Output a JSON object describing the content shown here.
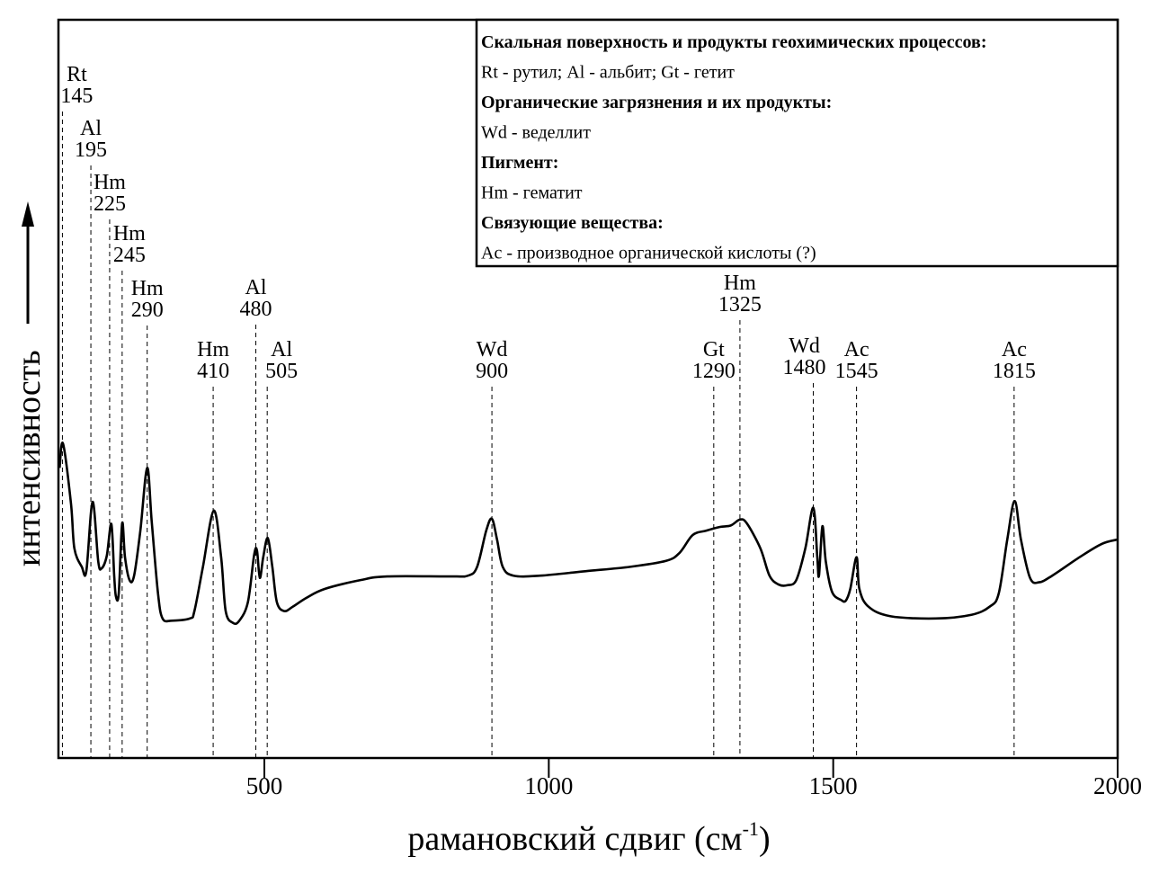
{
  "chart_data": {
    "type": "line",
    "title": "",
    "xlabel": "рамановский сдвиг (см",
    "xlabel_sup": "-1",
    "xlabel_close": ")",
    "ylabel": "интенсивность",
    "xlim": [
      138,
      2000
    ],
    "ylim": [
      0,
      100
    ],
    "grid": false,
    "x_ticks": [
      500,
      1000,
      1500,
      2000
    ],
    "x_tick_labels": [
      "500",
      "1000",
      "1500",
      "2000"
    ],
    "series": [
      {
        "name": "spectrum",
        "color": "#000000",
        "points": [
          [
            140,
            39.3
          ],
          [
            146,
            42.6
          ],
          [
            160,
            34.5
          ],
          [
            166,
            28.4
          ],
          [
            179,
            25.9
          ],
          [
            187,
            25.3
          ],
          [
            198,
            34.7
          ],
          [
            208,
            26.6
          ],
          [
            214,
            25.7
          ],
          [
            223,
            27.4
          ],
          [
            231,
            31.7
          ],
          [
            236,
            24.7
          ],
          [
            239,
            21.9
          ],
          [
            244,
            22.3
          ],
          [
            250,
            31.8
          ],
          [
            255,
            27.2
          ],
          [
            263,
            24.1
          ],
          [
            271,
            24.7
          ],
          [
            282,
            30.8
          ],
          [
            294,
            39.3
          ],
          [
            302,
            32.0
          ],
          [
            313,
            22.3
          ],
          [
            321,
            18.9
          ],
          [
            337,
            18.6
          ],
          [
            369,
            18.9
          ],
          [
            377,
            19.9
          ],
          [
            392,
            25.9
          ],
          [
            411,
            33.5
          ],
          [
            424,
            27.2
          ],
          [
            432,
            19.9
          ],
          [
            445,
            18.3
          ],
          [
            456,
            18.6
          ],
          [
            471,
            21.1
          ],
          [
            482,
            27.5
          ],
          [
            487,
            28.1
          ],
          [
            492,
            24.4
          ],
          [
            498,
            27.2
          ],
          [
            506,
            29.8
          ],
          [
            514,
            25.9
          ],
          [
            522,
            21.1
          ],
          [
            535,
            19.9
          ],
          [
            550,
            20.5
          ],
          [
            574,
            21.7
          ],
          [
            606,
            22.9
          ],
          [
            669,
            24.1
          ],
          [
            716,
            24.6
          ],
          [
            827,
            24.6
          ],
          [
            858,
            24.7
          ],
          [
            874,
            25.9
          ],
          [
            890,
            30.8
          ],
          [
            900,
            32.4
          ],
          [
            909,
            29.6
          ],
          [
            919,
            25.9
          ],
          [
            938,
            24.7
          ],
          [
            985,
            24.7
          ],
          [
            1064,
            25.3
          ],
          [
            1143,
            25.9
          ],
          [
            1206,
            26.7
          ],
          [
            1230,
            27.8
          ],
          [
            1253,
            30.2
          ],
          [
            1277,
            30.8
          ],
          [
            1301,
            31.3
          ],
          [
            1320,
            31.5
          ],
          [
            1336,
            32.3
          ],
          [
            1348,
            31.8
          ],
          [
            1372,
            28.4
          ],
          [
            1388,
            24.7
          ],
          [
            1404,
            23.5
          ],
          [
            1419,
            23.4
          ],
          [
            1435,
            24.1
          ],
          [
            1451,
            28.4
          ],
          [
            1465,
            33.9
          ],
          [
            1472,
            27.2
          ],
          [
            1475,
            24.7
          ],
          [
            1481,
            31.4
          ],
          [
            1487,
            26.6
          ],
          [
            1498,
            22.5
          ],
          [
            1514,
            21.4
          ],
          [
            1522,
            21.3
          ],
          [
            1530,
            22.9
          ],
          [
            1541,
            27.2
          ],
          [
            1546,
            22.9
          ],
          [
            1562,
            20.5
          ],
          [
            1601,
            19.2
          ],
          [
            1680,
            18.9
          ],
          [
            1743,
            19.4
          ],
          [
            1775,
            20.5
          ],
          [
            1791,
            22.3
          ],
          [
            1806,
            29.6
          ],
          [
            1819,
            34.8
          ],
          [
            1830,
            29.6
          ],
          [
            1846,
            24.4
          ],
          [
            1862,
            23.8
          ],
          [
            1885,
            24.7
          ],
          [
            1933,
            27.2
          ],
          [
            1972,
            29.0
          ],
          [
            2000,
            29.6
          ]
        ]
      }
    ],
    "annotations": [
      {
        "label": "Rt",
        "value": "145",
        "x": 145
      },
      {
        "label": "Al",
        "value": "195",
        "x": 195
      },
      {
        "label": "Hm",
        "value": "225",
        "x": 228
      },
      {
        "label": "Hm",
        "value": "245",
        "x": 250
      },
      {
        "label": "Hm",
        "value": "290",
        "x": 294
      },
      {
        "label": "Hm",
        "value": "410",
        "x": 410
      },
      {
        "label": "Al",
        "value": "480",
        "x": 485
      },
      {
        "label": "Al",
        "value": "505",
        "x": 505
      },
      {
        "label": "Wd",
        "value": "900",
        "x": 900
      },
      {
        "label": "Gt",
        "value": "1290",
        "x": 1290
      },
      {
        "label": "Hm",
        "value": "1325",
        "x": 1336
      },
      {
        "label": "Wd",
        "value": "1480",
        "x": 1465
      },
      {
        "label": "Ac",
        "value": "1545",
        "x": 1541
      },
      {
        "label": "Ac",
        "value": "1815",
        "x": 1818
      }
    ],
    "legend": {
      "placement": "top-right",
      "lines": [
        {
          "text": "Скальная поверхность и продукты геохимических процессов:",
          "bold": true
        },
        {
          "text": "Rt - рутил; Al - альбит; Gt - гетит",
          "bold": false
        },
        {
          "text": "Органические загрязнения и их продукты:",
          "bold": true
        },
        {
          "text": "Wd - веделлит",
          "bold": false
        },
        {
          "text": "Пигмент:",
          "bold": true
        },
        {
          "text": "Hm - гематит",
          "bold": false
        },
        {
          "text": "Связующие вещества:",
          "bold": true
        },
        {
          "text": "Ac - производное органической кислоты (?)",
          "bold": false
        }
      ]
    }
  }
}
